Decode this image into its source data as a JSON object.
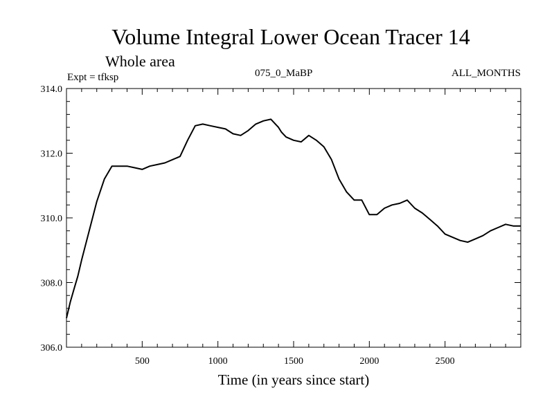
{
  "chart_data": {
    "type": "line",
    "title": "Volume Integral Lower Ocean Tracer 14",
    "subtitle": "Whole area",
    "experiment_label": "Expt = tfksp",
    "run_label": "075_0_MaBP",
    "period_label": "ALL_MONTHS",
    "xlabel": "Time (in years since start)",
    "ylabel": "",
    "xlim": [
      0,
      3000
    ],
    "ylim": [
      306.0,
      314.0
    ],
    "x_ticks": [
      500,
      1000,
      1500,
      2000,
      2500
    ],
    "x_tick_labels": [
      "500",
      "1000",
      "1500",
      "2000",
      "2500"
    ],
    "y_ticks": [
      306.0,
      308.0,
      310.0,
      312.0,
      314.0
    ],
    "y_tick_labels": [
      "306.0",
      "308.0",
      "310.0",
      "312.0",
      "314.0"
    ],
    "grid": false,
    "series": [
      {
        "name": "Tracer 14",
        "color": "#000000",
        "x": [
          0,
          25,
          50,
          75,
          100,
          150,
          200,
          250,
          300,
          350,
          400,
          450,
          500,
          550,
          600,
          650,
          700,
          750,
          800,
          850,
          900,
          950,
          1000,
          1050,
          1100,
          1150,
          1200,
          1250,
          1300,
          1350,
          1400,
          1420,
          1450,
          1500,
          1550,
          1600,
          1650,
          1700,
          1750,
          1800,
          1850,
          1900,
          1950,
          2000,
          2050,
          2100,
          2150,
          2200,
          2250,
          2300,
          2350,
          2400,
          2450,
          2500,
          2550,
          2600,
          2650,
          2700,
          2750,
          2800,
          2850,
          2900,
          2950,
          3000
        ],
        "values": [
          306.9,
          307.4,
          307.8,
          308.2,
          308.7,
          309.6,
          310.5,
          311.2,
          311.6,
          311.6,
          311.6,
          311.55,
          311.5,
          311.6,
          311.65,
          311.7,
          311.8,
          311.9,
          312.4,
          312.85,
          312.9,
          312.85,
          312.8,
          312.75,
          312.6,
          312.55,
          312.7,
          312.9,
          313.0,
          313.05,
          312.8,
          312.65,
          312.5,
          312.4,
          312.35,
          312.55,
          312.4,
          312.2,
          311.8,
          311.2,
          310.8,
          310.55,
          310.55,
          310.1,
          310.1,
          310.3,
          310.4,
          310.45,
          310.55,
          310.3,
          310.15,
          309.95,
          309.75,
          309.5,
          309.4,
          309.3,
          309.25,
          309.35,
          309.45,
          309.6,
          309.7,
          309.8,
          309.75,
          309.75
        ]
      }
    ]
  }
}
